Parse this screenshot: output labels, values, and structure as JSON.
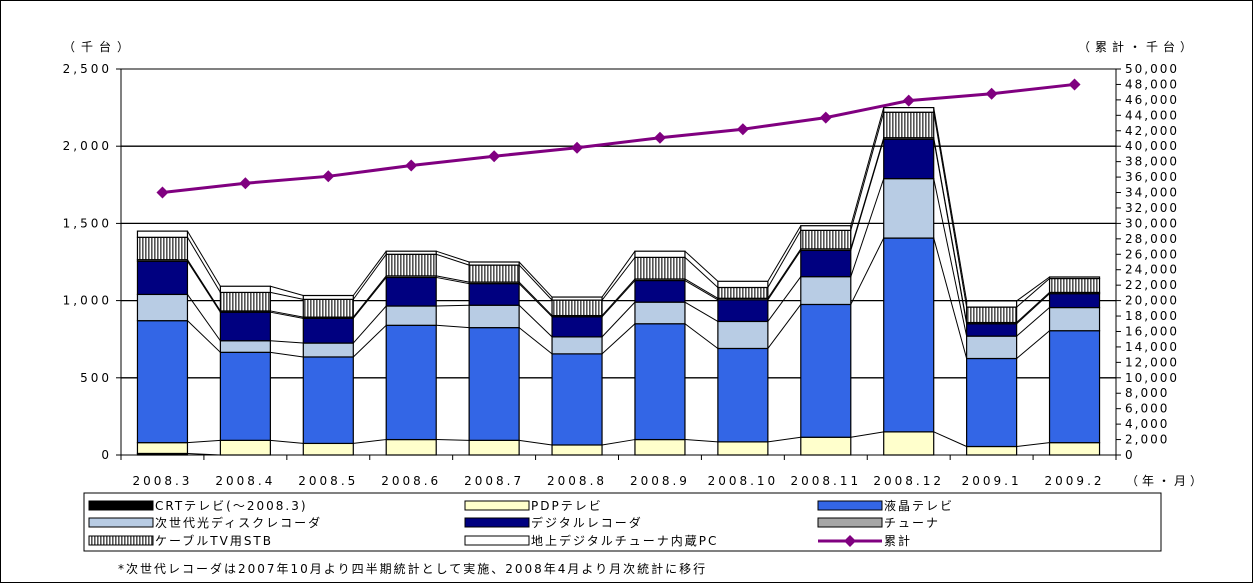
{
  "chart_data": {
    "type": "bar",
    "stacked": true,
    "categories": [
      "2008.3",
      "2008.4",
      "2008.5",
      "2008.6",
      "2008.7",
      "2008.8",
      "2008.9",
      "2008.10",
      "2008.11",
      "2008.12",
      "2009.1",
      "2009.2"
    ],
    "left_axis": {
      "unit_label": "（千台）",
      "ylim": [
        0,
        2500
      ],
      "ticks": [
        0,
        500,
        1000,
        1500,
        2000,
        2500
      ],
      "tick_labels": [
        "0",
        "500",
        "1,000",
        "1,500",
        "2,000",
        "2,500"
      ]
    },
    "right_axis": {
      "unit_label": "（累計・千台）",
      "ylim": [
        0,
        50000
      ],
      "ticks": [
        0,
        2000,
        4000,
        6000,
        8000,
        10000,
        12000,
        14000,
        16000,
        18000,
        20000,
        22000,
        24000,
        26000,
        28000,
        30000,
        32000,
        34000,
        36000,
        38000,
        40000,
        42000,
        44000,
        46000,
        48000,
        50000
      ],
      "tick_labels": [
        "0",
        "2,000",
        "4,000",
        "6,000",
        "8,000",
        "10,000",
        "12,000",
        "14,000",
        "16,000",
        "18,000",
        "20,000",
        "22,000",
        "24,000",
        "26,000",
        "28,000",
        "30,000",
        "32,000",
        "34,000",
        "36,000",
        "38,000",
        "40,000",
        "42,000",
        "44,000",
        "46,000",
        "48,000",
        "50,000"
      ]
    },
    "x_unit_label": "（年・月）",
    "grid": true,
    "series": [
      {
        "name": "CRTテレビ(～2008.3)",
        "color": "#000000",
        "values": [
          10,
          0,
          0,
          0,
          0,
          0,
          0,
          0,
          0,
          0,
          0,
          0
        ]
      },
      {
        "name": "PDPテレビ",
        "color": "#FFFFCC",
        "values": [
          70,
          95,
          75,
          100,
          95,
          65,
          100,
          85,
          115,
          150,
          55,
          80
        ]
      },
      {
        "name": "液晶テレビ",
        "color": "#3366E6",
        "values": [
          790,
          570,
          560,
          740,
          730,
          590,
          750,
          605,
          860,
          1255,
          570,
          725
        ]
      },
      {
        "name": "次世代光ディスクレコーダ",
        "color": "#B8CCE4",
        "values": [
          170,
          75,
          90,
          125,
          145,
          110,
          140,
          175,
          180,
          385,
          145,
          150
        ]
      },
      {
        "name": "デジタルレコーダ",
        "color": "#000080",
        "values": [
          215,
          185,
          160,
          185,
          140,
          130,
          140,
          140,
          170,
          255,
          80,
          90
        ]
      },
      {
        "name": "チューナ",
        "color": "#A6A6A6",
        "values": [
          10,
          8,
          8,
          10,
          10,
          8,
          10,
          10,
          10,
          10,
          8,
          8
        ]
      },
      {
        "name": "ケーブルTV用STB",
        "color": "#BFBFBF",
        "pattern": "vertical-hatch",
        "values": [
          145,
          120,
          115,
          140,
          110,
          100,
          140,
          70,
          120,
          165,
          100,
          90
        ]
      },
      {
        "name": "地上デジタルチューナ内蔵PC",
        "color": "#FFFFFF",
        "values": [
          40,
          40,
          25,
          20,
          20,
          20,
          40,
          40,
          30,
          30,
          40,
          10
        ]
      }
    ],
    "line_series": {
      "name": "累計",
      "color": "#800080",
      "axis": "right",
      "values": [
        34000,
        35200,
        36100,
        37500,
        38700,
        39800,
        41100,
        42200,
        43700,
        45900,
        46800,
        48000
      ]
    }
  },
  "footnote": "*次世代レコーダは2007年10月より四半期統計として実施、2008年4月より月次統計に移行"
}
